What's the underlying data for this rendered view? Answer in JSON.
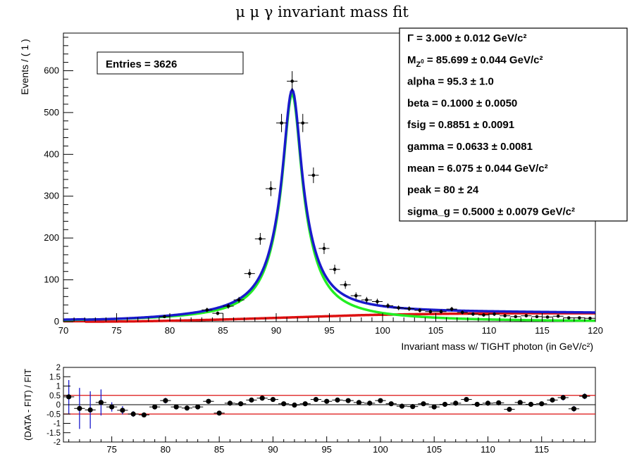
{
  "title": "μ μ γ invariant mass fit",
  "main": {
    "ylabel": "Events / ( 1 )",
    "xlabel": "Invariant mass w/ TIGHT photon (in GeV/c²)",
    "entries_label": "Entries =  3626"
  },
  "params": [
    {
      "name": "Γ =",
      "value": "3.000 ± 0.012 GeV/c²"
    },
    {
      "name": "M_Z0 =",
      "value": "85.699 ± 0.044 GeV/c²"
    },
    {
      "name": "alpha =",
      "value": "95.3 ± 1.0"
    },
    {
      "name": "beta =",
      "value": "0.1000 ± 0.0050"
    },
    {
      "name": "fsig =",
      "value": "0.8851 ± 0.0091"
    },
    {
      "name": "gamma =",
      "value": "0.0633 ± 0.0081"
    },
    {
      "name": "mean =",
      "value": "6.075 ± 0.044 GeV/c²"
    },
    {
      "name": "peak =",
      "value": "80 ± 24"
    },
    {
      "name": "sigma_g =",
      "value": "0.5000 ± 0.0079 GeV/c²"
    }
  ],
  "resid": {
    "ylabel": "(DATA - FIT) / FIT"
  },
  "colors": {
    "total_fit": "#1a1acc",
    "signal": "#22ee22",
    "background": "#dd1111",
    "data": "#000000",
    "residual_band": "#dd1111",
    "residual_errors": "#1a1acc"
  },
  "chart_data": [
    {
      "type": "scatter",
      "title": "μ μ γ invariant mass fit",
      "xlabel": "Invariant mass w/ TIGHT photon (in GeV/c²)",
      "ylabel": "Events / ( 1 )",
      "xlim": [
        70,
        120
      ],
      "ylim": [
        0,
        690
      ],
      "xticks": [
        70,
        75,
        80,
        85,
        90,
        95,
        100,
        105,
        110,
        115,
        120
      ],
      "yticks": [
        0,
        100,
        200,
        300,
        400,
        500,
        600
      ],
      "grid": false,
      "series": [
        {
          "kind": "data",
          "x": [
            79.5,
            83.5,
            84.5,
            85.5,
            86.5,
            87.5,
            88.5,
            89.5,
            90.5,
            91.5,
            92.5,
            93.5,
            94.5,
            95.5,
            96.5,
            97.5,
            98.5,
            99.5,
            100.5,
            101.5,
            102.5,
            103.5,
            104.5,
            105.5,
            106.5,
            107.5,
            108.5,
            109.5,
            110.5,
            111.5,
            112.5,
            113.5,
            114.5,
            115.5,
            116.5,
            117.5,
            118.5,
            119.5
          ],
          "y": [
            12,
            28,
            20,
            37,
            52,
            115,
            198,
            318,
            475,
            575,
            475,
            350,
            175,
            125,
            88,
            62,
            52,
            48,
            38,
            33,
            31,
            27,
            24,
            24,
            30,
            22,
            18,
            16,
            18,
            14,
            12,
            14,
            12,
            11,
            13,
            9,
            9,
            8
          ]
        },
        {
          "name": "Γ = 3.000 ± 0.012 GeV/c²",
          "kind": "total"
        }
      ]
    },
    {
      "type": "scatter",
      "ylabel": "(DATA - FIT) / FIT",
      "xlim": [
        70.5,
        120
      ],
      "ylim": [
        -2,
        2
      ],
      "xticks": [
        75,
        80,
        85,
        90,
        95,
        100,
        105,
        110,
        115
      ],
      "yticks": [
        -2,
        -1.5,
        -1,
        -0.5,
        0,
        0.5,
        1,
        1.5,
        2
      ],
      "band": [
        -0.5,
        0.5
      ],
      "x": [
        71,
        72,
        73,
        74,
        75,
        76,
        77,
        78,
        79,
        80,
        81,
        82,
        83,
        84,
        85,
        86,
        87,
        88,
        89,
        90,
        91,
        92,
        93,
        94,
        95,
        96,
        97,
        98,
        99,
        100,
        101,
        102,
        103,
        104,
        105,
        106,
        107,
        108,
        109,
        110,
        111,
        112,
        113,
        114,
        115,
        116,
        117,
        118,
        119
      ],
      "y": [
        0.42,
        -0.2,
        -0.28,
        0.12,
        -0.12,
        -0.3,
        -0.5,
        -0.55,
        -0.12,
        0.22,
        -0.12,
        -0.18,
        -0.12,
        0.18,
        -0.45,
        0.08,
        0.05,
        0.25,
        0.35,
        0.28,
        0.05,
        -0.02,
        0.05,
        0.28,
        0.18,
        0.25,
        0.22,
        0.12,
        0.08,
        0.22,
        0.05,
        -0.08,
        -0.1,
        0.05,
        -0.12,
        0.02,
        0.08,
        0.28,
        0.02,
        0.08,
        0.1,
        -0.25,
        0.12,
        0.02,
        0.05,
        0.25,
        0.38,
        -0.22,
        0.45
      ],
      "yerr": [
        0.9,
        1.1,
        1.0,
        0.7,
        0.25,
        0.22,
        0.15,
        0.12,
        0.12,
        0.15,
        0.1,
        0.1,
        0.08,
        0.08,
        0.06,
        0.06,
        0.05,
        0.05,
        0.05,
        0.05,
        0.05,
        0.05,
        0.05,
        0.05,
        0.05,
        0.05,
        0.05,
        0.05,
        0.05,
        0.05,
        0.05,
        0.05,
        0.05,
        0.05,
        0.05,
        0.05,
        0.06,
        0.06,
        0.08,
        0.08,
        0.1,
        0.1,
        0.1,
        0.12,
        0.12,
        0.12,
        0.15,
        0.15,
        0.15
      ]
    }
  ]
}
